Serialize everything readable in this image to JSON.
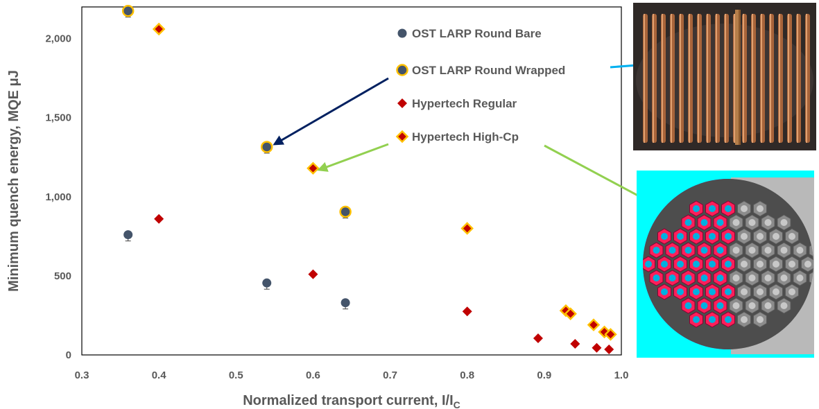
{
  "chart_data": {
    "type": "scatter",
    "xlabel_main": "Normalized transport current, I/I",
    "xlabel_sub": "C",
    "ylabel": "Minimum quench energy, MQE μJ",
    "xlim": [
      0.3,
      1.0
    ],
    "ylim": [
      0,
      2200
    ],
    "x_ticks": [
      "0.3",
      "0.4",
      "0.5",
      "0.6",
      "0.7",
      "0.8",
      "0.9",
      "1.0"
    ],
    "y_ticks": [
      "0",
      "500",
      "1,000",
      "1,500",
      "2,000"
    ],
    "grid": false,
    "series": [
      {
        "name": "OST LARP Round Bare",
        "marker": "circle",
        "color": "#44546a",
        "points": [
          [
            0.36,
            760
          ],
          [
            0.54,
            455
          ],
          [
            0.642,
            330
          ]
        ]
      },
      {
        "name": "OST LARP Round Wrapped",
        "marker": "circle-ring",
        "color": "#44546a",
        "edge_color": "#ffc000",
        "points": [
          [
            0.36,
            2175
          ],
          [
            0.54,
            1315
          ],
          [
            0.642,
            905
          ]
        ]
      },
      {
        "name": "Hypertech Regular",
        "marker": "diamond",
        "color": "#c00000",
        "points": [
          [
            0.4,
            860
          ],
          [
            0.6,
            510
          ],
          [
            0.8,
            275
          ],
          [
            0.892,
            105
          ],
          [
            0.94,
            70
          ],
          [
            0.968,
            45
          ],
          [
            0.984,
            35
          ]
        ]
      },
      {
        "name": "Hypertech High-Cp",
        "marker": "diamond-ring",
        "color": "#c00000",
        "edge_color": "#ffc000",
        "points": [
          [
            0.4,
            2060
          ],
          [
            0.6,
            1180
          ],
          [
            0.8,
            800
          ],
          [
            0.928,
            280
          ],
          [
            0.934,
            260
          ],
          [
            0.964,
            190
          ],
          [
            0.978,
            145
          ],
          [
            0.986,
            130
          ]
        ]
      }
    ]
  },
  "images": {
    "coil_photo": "copper-wire-coil-photo",
    "cross_section": "conductor-cross-section-image"
  }
}
